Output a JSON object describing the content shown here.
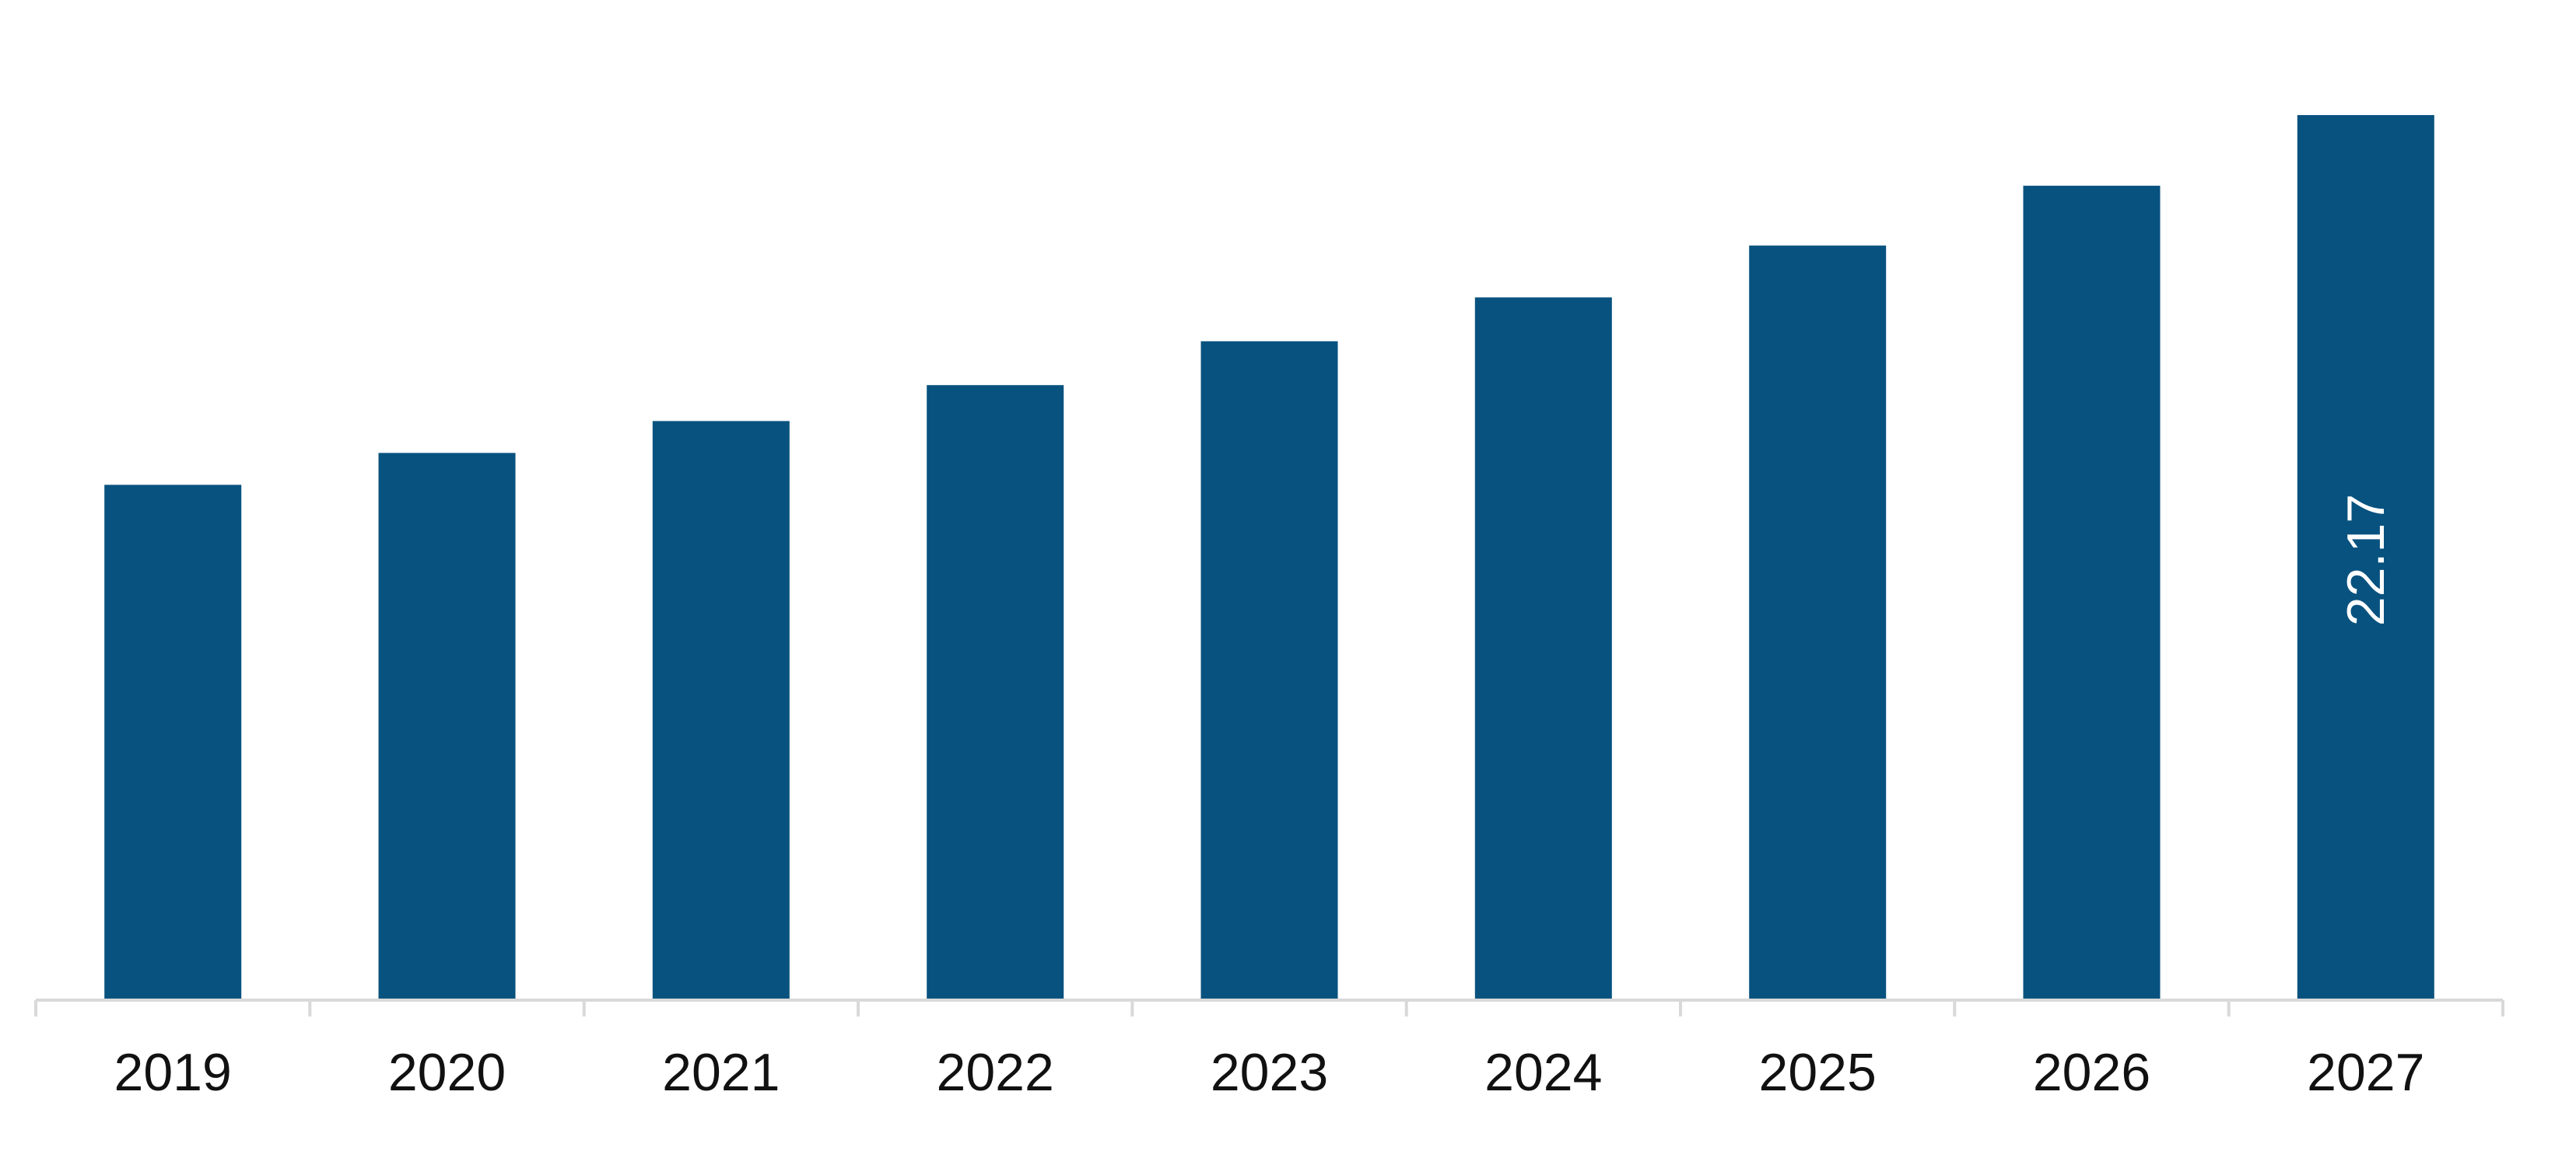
{
  "chart_data": {
    "type": "bar",
    "categories": [
      "2019",
      "2020",
      "2021",
      "2022",
      "2023",
      "2024",
      "2025",
      "2026",
      "2027"
    ],
    "values": [
      12.9,
      13.7,
      14.5,
      15.4,
      16.5,
      17.6,
      18.9,
      20.4,
      22.17
    ],
    "data_labels": [
      {
        "index": 8,
        "text": "22.17"
      }
    ],
    "title": "",
    "xlabel": "",
    "ylabel": "",
    "ylim": [
      0,
      22.17
    ],
    "grid": false,
    "legend": "none",
    "colors": {
      "bar": "#08527F",
      "axis": "#D9D9D9",
      "tick_label": "#111111",
      "data_label": "#FFFFFF"
    }
  }
}
